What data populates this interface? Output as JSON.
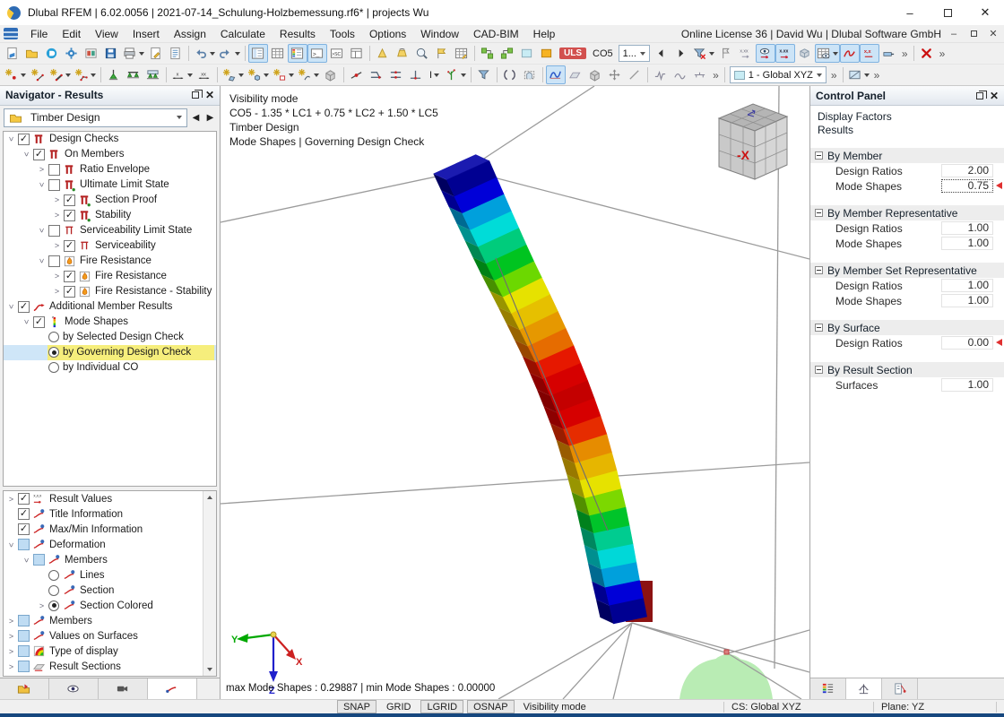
{
  "window": {
    "title": "Dlubal RFEM | 6.02.0056 | 2021-07-14_Schulung-Holzbemessung.rf6* | projects Wu",
    "license": "Online License 36 | David Wu | Dlubal Software GmbH"
  },
  "menu": {
    "items": [
      "File",
      "Edit",
      "View",
      "Insert",
      "Assign",
      "Calculate",
      "Results",
      "Tools",
      "Options",
      "Window",
      "CAD-BIM",
      "Help"
    ]
  },
  "toolbar": {
    "uls_badge": "ULS",
    "co_label": "CO5",
    "combo1": "1...",
    "view_combo": "1 - Global XYZ",
    "row1": [
      {
        "i": "new-model"
      },
      {
        "i": "open-model"
      },
      {
        "i": "dlubal-connect"
      },
      {
        "i": "settings-model"
      },
      {
        "i": "print-graphic"
      },
      {
        "i": "save"
      },
      {
        "i": "print",
        "dd": true
      },
      {
        "i": "page-edit"
      },
      {
        "i": "report"
      },
      {
        "sep": true
      },
      {
        "i": "undo",
        "dd": true
      },
      {
        "i": "redo",
        "dd": true
      },
      {
        "sep": true
      },
      {
        "i": "navigator-toggle",
        "active": true
      },
      {
        "i": "tables-toggle"
      },
      {
        "i": "panel-toggle",
        "active": true
      },
      {
        "i": "command-line",
        "active": true
      },
      {
        "i": "script-console"
      },
      {
        "i": "layout-manager"
      },
      {
        "sep": true
      },
      {
        "i": "rotate-view"
      },
      {
        "i": "rotate-view2"
      },
      {
        "i": "zoom-tool"
      },
      {
        "i": "flag-tool"
      },
      {
        "i": "mini-table"
      },
      {
        "sep": true
      },
      {
        "i": "link-model"
      },
      {
        "i": "link-model2"
      },
      {
        "i": "swatch-cyan"
      },
      {
        "i": "swatch-orange"
      },
      {
        "badge": "ULS"
      },
      {
        "label": "CO5"
      },
      {
        "combo": "1..."
      },
      {
        "i": "arrow-left"
      },
      {
        "i": "arrow-right"
      },
      {
        "i": "funnel-clear",
        "dd": true
      },
      {
        "i": "flag-values"
      },
      {
        "i": "values-gray"
      },
      {
        "i": "values-eye",
        "active": true
      },
      {
        "i": "values-xxx",
        "active": true
      },
      {
        "i": "render-mode"
      },
      {
        "i": "table-values",
        "active": true,
        "dd": true
      },
      {
        "i": "diagram-red",
        "active": true
      },
      {
        "i": "xxx-red",
        "active": true
      },
      {
        "i": "member-results"
      },
      {
        "chev": true
      },
      {
        "sep": true
      },
      {
        "i": "clear-results"
      },
      {
        "chev": true
      }
    ],
    "row2": [
      {
        "i": "new-node",
        "dd": true
      },
      {
        "i": "new-line"
      },
      {
        "i": "new-member",
        "dd": true
      },
      {
        "i": "new-polyline",
        "dd": true
      },
      {
        "sep": true
      },
      {
        "i": "support-nodal"
      },
      {
        "i": "support-line"
      },
      {
        "i": "support-surface"
      },
      {
        "sep": true
      },
      {
        "i": "dim-x",
        "dd": true
      },
      {
        "i": "dim-xx"
      },
      {
        "sep": true
      },
      {
        "i": "new-surface",
        "dd": true
      },
      {
        "i": "new-solid",
        "dd": true
      },
      {
        "i": "new-opening",
        "dd": true
      },
      {
        "i": "new-nurbs",
        "dd": true
      },
      {
        "i": "block"
      },
      {
        "sep": true
      },
      {
        "i": "insert-node"
      },
      {
        "i": "connect-members"
      },
      {
        "i": "connect-members2"
      },
      {
        "i": "connect-members3"
      },
      {
        "label": "I",
        "dd": true
      },
      {
        "i": "imperfection",
        "dd": true
      },
      {
        "sep": true
      },
      {
        "i": "funnel-blue"
      },
      {
        "sep": true
      },
      {
        "i": "clip-arc"
      },
      {
        "i": "clip-box"
      },
      {
        "sep": true
      },
      {
        "i": "mode-shape",
        "active": true
      },
      {
        "i": "surface-gray"
      },
      {
        "i": "cube-gray"
      },
      {
        "i": "move-4way"
      },
      {
        "i": "diag-line"
      },
      {
        "sep": true
      },
      {
        "i": "result-wave1"
      },
      {
        "i": "result-wave2"
      },
      {
        "i": "result-wave3"
      },
      {
        "chev": true
      },
      {
        "sep": true
      },
      {
        "viewcombo": "1 - Global XYZ"
      },
      {
        "chev": true
      },
      {
        "sep": true
      },
      {
        "i": "visual-objects",
        "dd": true
      },
      {
        "chev": true
      }
    ]
  },
  "navigator": {
    "title": "Navigator - Results",
    "combo": "Timber Design",
    "tree1": [
      {
        "l": 0,
        "e": "v",
        "c": "on",
        "i": "check",
        "t": "Design Checks"
      },
      {
        "l": 1,
        "e": "v",
        "c": "on",
        "i": "check",
        "t": "On Members"
      },
      {
        "l": 2,
        "e": ">",
        "c": "off",
        "i": "check",
        "t": "Ratio Envelope"
      },
      {
        "l": 2,
        "e": "v",
        "c": "off",
        "i": "uls",
        "t": "Ultimate Limit State"
      },
      {
        "l": 3,
        "e": ">",
        "c": "on",
        "i": "uls",
        "t": "Section Proof"
      },
      {
        "l": 3,
        "e": ">",
        "c": "on",
        "i": "uls",
        "t": "Stability"
      },
      {
        "l": 2,
        "e": "v",
        "c": "off",
        "i": "sls",
        "t": "Serviceability Limit State"
      },
      {
        "l": 3,
        "e": ">",
        "c": "on",
        "i": "sls",
        "t": "Serviceability"
      },
      {
        "l": 2,
        "e": "v",
        "c": "off",
        "i": "fire",
        "t": "Fire Resistance"
      },
      {
        "l": 3,
        "e": ">",
        "c": "on",
        "i": "fire",
        "t": "Fire Resistance"
      },
      {
        "l": 3,
        "e": ">",
        "c": "on",
        "i": "fire",
        "t": "Fire Resistance - Stability"
      },
      {
        "l": 0,
        "e": "v",
        "c": "on",
        "i": "addres",
        "t": "Additional Member Results"
      },
      {
        "l": 1,
        "e": "v",
        "c": "on",
        "i": "mode",
        "t": "Mode Shapes"
      },
      {
        "l": 2,
        "e": "",
        "c": "radio-off",
        "i": "",
        "t": "by Selected Design Check"
      },
      {
        "l": 2,
        "e": "",
        "c": "radio-on",
        "i": "",
        "t": "by Governing Design Check",
        "hl": true
      },
      {
        "l": 2,
        "e": "",
        "c": "radio-off",
        "i": "",
        "t": "by Individual CO"
      }
    ],
    "tree2": [
      {
        "l": 0,
        "e": ">",
        "c": "on",
        "i": "resultvals",
        "t": "Result Values"
      },
      {
        "l": 0,
        "e": "",
        "c": "on",
        "i": "info",
        "t": "Title Information"
      },
      {
        "l": 0,
        "e": "",
        "c": "on",
        "i": "info",
        "t": "Max/Min Information"
      },
      {
        "l": 0,
        "e": "v",
        "c": "partial",
        "i": "deform",
        "t": "Deformation"
      },
      {
        "l": 1,
        "e": "v",
        "c": "partial",
        "i": "deform",
        "t": "Members"
      },
      {
        "l": 2,
        "e": "",
        "c": "radio-off",
        "i": "deform",
        "t": "Lines"
      },
      {
        "l": 2,
        "e": "",
        "c": "radio-off",
        "i": "deform",
        "t": "Section"
      },
      {
        "l": 2,
        "e": ">",
        "c": "radio-on",
        "i": "deform",
        "t": "Section Colored"
      },
      {
        "l": 0,
        "e": ">",
        "c": "partial",
        "i": "deform",
        "t": "Members"
      },
      {
        "l": 0,
        "e": ">",
        "c": "partial",
        "i": "deform",
        "t": "Values on Surfaces"
      },
      {
        "l": 0,
        "e": ">",
        "c": "partial",
        "i": "typedisp",
        "t": "Type of display"
      },
      {
        "l": 0,
        "e": ">",
        "c": "partial",
        "i": "resultsec",
        "t": "Result Sections"
      }
    ],
    "tabs": [
      "data",
      "display",
      "views",
      "results"
    ]
  },
  "viewport": {
    "overlay_lines": [
      "Visibility mode",
      "CO5 - 1.35 * LC1 + 0.75 * LC2 + 1.50 * LC5",
      "Timber Design",
      "Mode Shapes | Governing Design Check"
    ],
    "minmax": "max Mode Shapes : 0.29887 | min Mode Shapes : 0.00000",
    "cube_label": "-X",
    "axes": {
      "x": "X",
      "y": "Y",
      "z": "Z"
    },
    "band_colors": [
      "#000092",
      "#0000d8",
      "#00a0dc",
      "#00dcd8",
      "#00cc7c",
      "#00c420",
      "#6cd800",
      "#e6e200",
      "#e6c000",
      "#e69800",
      "#e66c00",
      "#e61800",
      "#d60000",
      "#c40000",
      "#d60000",
      "#e62c00",
      "#e68c00",
      "#e6b600",
      "#e6e200",
      "#7cd800",
      "#00c42a",
      "#00cc90",
      "#00d8d8",
      "#00a0dc",
      "#0000d8",
      "#000092"
    ]
  },
  "control_panel": {
    "title": "Control Panel",
    "subtitle1": "Display Factors",
    "subtitle2": "Results",
    "sections": [
      {
        "title": "By Member",
        "rows": [
          {
            "label": "Design Ratios",
            "value": "2.00"
          },
          {
            "label": "Mode Shapes",
            "value": "0.75",
            "selected": true,
            "marker": true
          }
        ]
      },
      {
        "title": "By Member Representative",
        "rows": [
          {
            "label": "Design Ratios",
            "value": "1.00"
          },
          {
            "label": "Mode Shapes",
            "value": "1.00"
          }
        ]
      },
      {
        "title": "By Member Set Representative",
        "rows": [
          {
            "label": "Design Ratios",
            "value": "1.00"
          },
          {
            "label": "Mode Shapes",
            "value": "1.00"
          }
        ]
      },
      {
        "title": "By Surface",
        "rows": [
          {
            "label": "Design Ratios",
            "value": "0.00",
            "marker": true
          }
        ]
      },
      {
        "title": "By Result Section",
        "rows": [
          {
            "label": "Surfaces",
            "value": "1.00"
          }
        ]
      }
    ]
  },
  "statusbar": {
    "toggles": [
      {
        "label": "SNAP",
        "pressed": true
      },
      {
        "label": "GRID",
        "pressed": false
      },
      {
        "label": "LGRID",
        "pressed": true
      },
      {
        "label": "OSNAP",
        "pressed": true
      }
    ],
    "mode": "Visibility mode",
    "cs": "CS: Global XYZ",
    "plane": "Plane: YZ"
  }
}
